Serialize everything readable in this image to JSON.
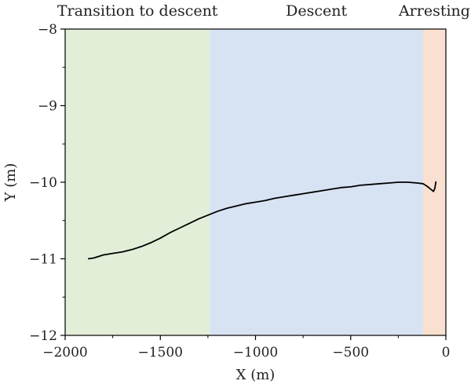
{
  "chart_data": {
    "type": "line",
    "xlabel": "X (m)",
    "ylabel": "Y (m)",
    "xlim": [
      -2000,
      0
    ],
    "ylim": [
      -12,
      -8
    ],
    "x_ticks": [
      -2000,
      -1500,
      -1000,
      -500,
      0
    ],
    "y_ticks": [
      -12,
      -11,
      -10,
      -9,
      -8
    ],
    "x_tick_labels": [
      "−2000",
      "−1500",
      "−1000",
      "−500",
      "0"
    ],
    "y_tick_labels": [
      "−12",
      "−11",
      "−10",
      "−9",
      "−8"
    ],
    "grid": false,
    "phases": [
      {
        "label": "Transition to descent",
        "x_start": -2000,
        "x_end": -1240,
        "color": "#e2eed8"
      },
      {
        "label": "Descent",
        "x_start": -1240,
        "x_end": -120,
        "color": "#d7e3f3"
      },
      {
        "label": "Arresting",
        "x_start": -120,
        "x_end": 0,
        "color": "#f9e0d0"
      }
    ],
    "series": [
      {
        "color": "#000000",
        "x": [
          -1880,
          -1850,
          -1800,
          -1750,
          -1700,
          -1650,
          -1600,
          -1550,
          -1500,
          -1450,
          -1400,
          -1350,
          -1300,
          -1250,
          -1200,
          -1150,
          -1100,
          -1050,
          -1000,
          -950,
          -900,
          -850,
          -800,
          -750,
          -700,
          -650,
          -600,
          -550,
          -500,
          -450,
          -400,
          -350,
          -300,
          -250,
          -200,
          -150,
          -120,
          -100,
          -80,
          -65,
          -58,
          -52
        ],
        "y": [
          -11.0,
          -10.99,
          -10.95,
          -10.93,
          -10.91,
          -10.88,
          -10.84,
          -10.79,
          -10.73,
          -10.66,
          -10.6,
          -10.54,
          -10.48,
          -10.43,
          -10.38,
          -10.34,
          -10.31,
          -10.28,
          -10.26,
          -10.24,
          -10.21,
          -10.19,
          -10.17,
          -10.15,
          -10.13,
          -10.11,
          -10.09,
          -10.07,
          -10.06,
          -10.04,
          -10.03,
          -10.02,
          -10.01,
          -10.0,
          -10.0,
          -10.01,
          -10.02,
          -10.05,
          -10.09,
          -10.12,
          -10.08,
          -9.99
        ]
      }
    ]
  }
}
